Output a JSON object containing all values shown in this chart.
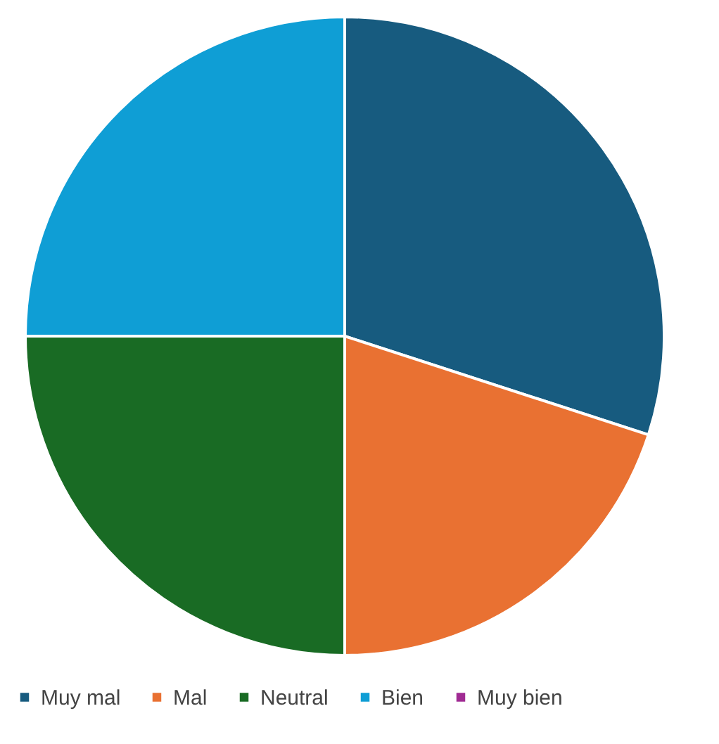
{
  "chart_data": {
    "type": "pie",
    "categories": [
      "Muy mal",
      "Mal",
      "Neutral",
      "Bien",
      "Muy bien"
    ],
    "values": [
      30,
      20,
      25,
      25,
      0
    ],
    "colors": [
      "#175b7f",
      "#e97132",
      "#196b24",
      "#0f9ed5",
      "#a02b93"
    ],
    "legend": "bottom"
  }
}
